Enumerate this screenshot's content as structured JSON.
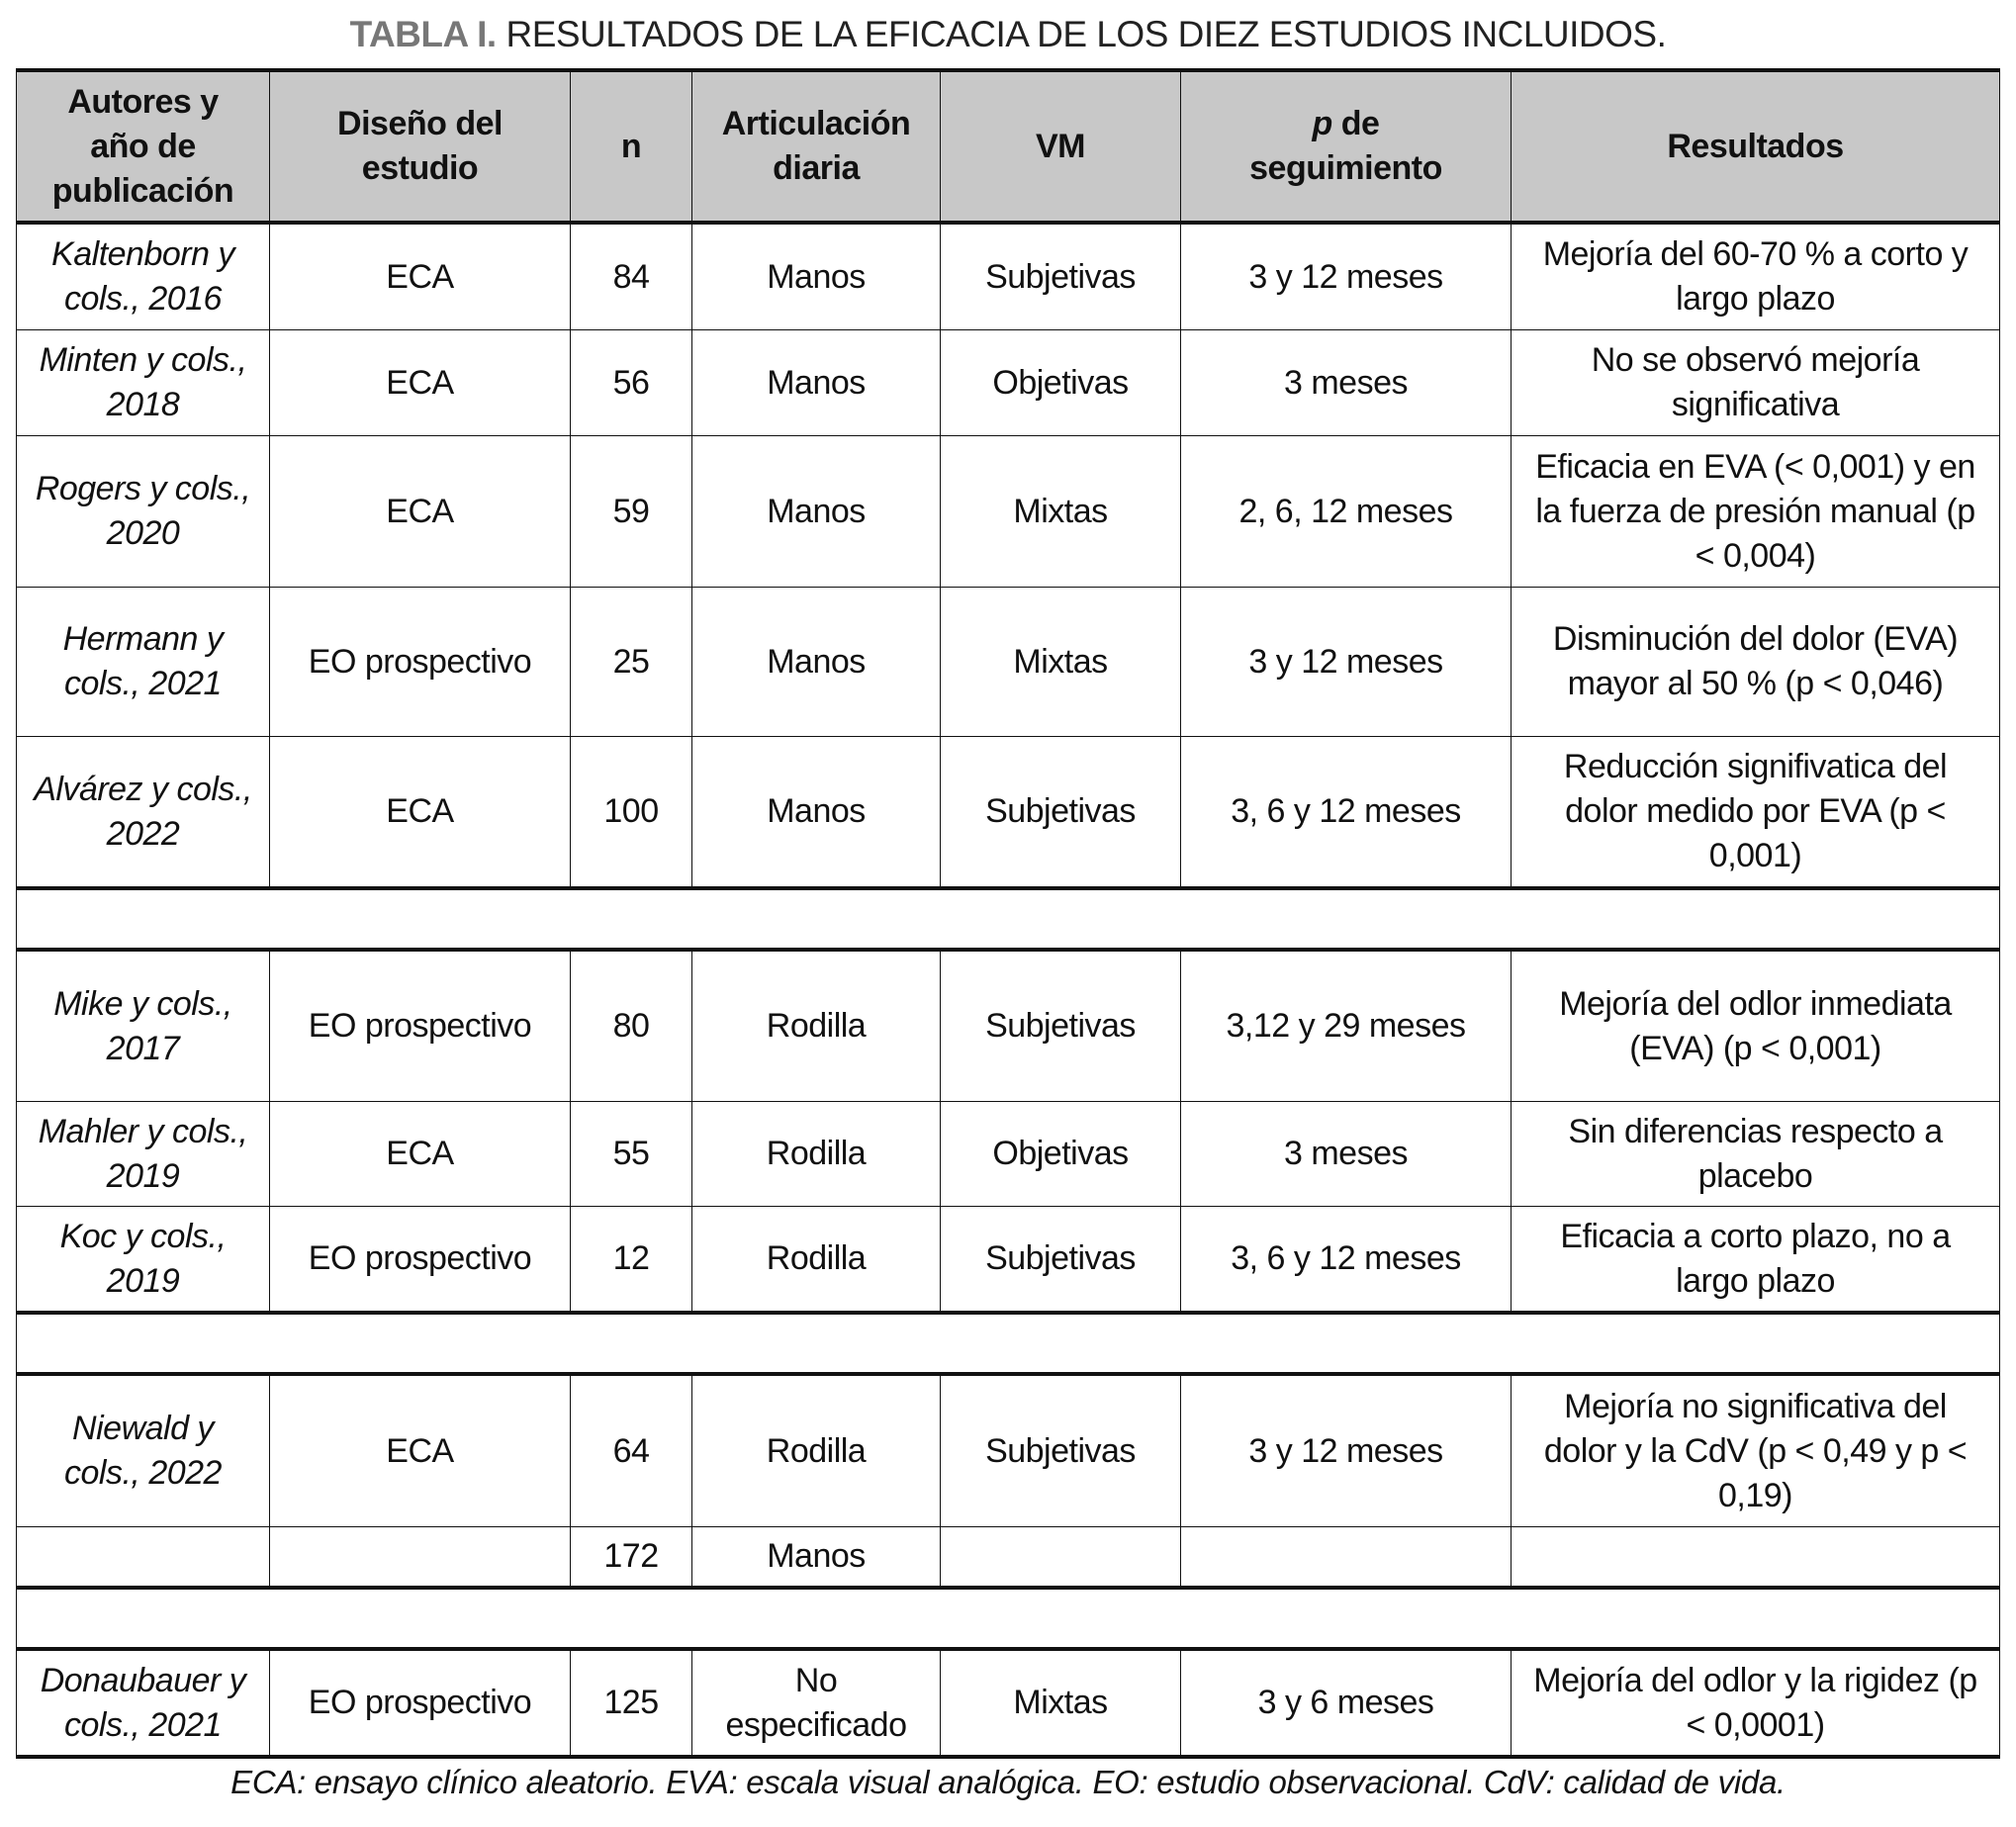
{
  "title": {
    "lead": "TABLA I.",
    "text": "RESULTADOS DE LA EFICACIA DE LOS DIEZ ESTUDIOS INCLUIDOS."
  },
  "headers": {
    "authors": "Autores y año de publicación",
    "design": "Diseño del estudio",
    "n": "n",
    "joint": "Articulación diaria",
    "vm": "VM",
    "followup_p": "p",
    "followup_rest": " de seguimiento",
    "results": "Resultados"
  },
  "rows": [
    {
      "authors": "Kaltenborn y cols., 2016",
      "design": "ECA",
      "n": "84",
      "joint": "Manos",
      "vm": "Subjetivas",
      "followup": "3 y 12 meses",
      "results": "Mejoría del 60-70 % a corto y largo plazo"
    },
    {
      "authors": "Minten y cols., 2018",
      "design": "ECA",
      "n": "56",
      "joint": "Manos",
      "vm": "Objetivas",
      "followup": "3 meses",
      "results": "No se observó mejoría significativa"
    },
    {
      "authors": "Rogers y cols., 2020",
      "design": "ECA",
      "n": "59",
      "joint": "Manos",
      "vm": "Mixtas",
      "followup": "2, 6, 12 meses",
      "results": "Eficacia en EVA (< 0,001) y en la fuerza de presión manual (p < 0,004)"
    },
    {
      "authors": "Hermann y cols., 2021",
      "design": "EO prospectivo",
      "n": "25",
      "joint": "Manos",
      "vm": "Mixtas",
      "followup": "3 y 12 meses",
      "results": "Disminución del dolor (EVA) mayor al 50 % (p < 0,046)"
    },
    {
      "authors": "Alvárez y cols., 2022",
      "design": "ECA",
      "n": "100",
      "joint": "Manos",
      "vm": "Subjetivas",
      "followup": "3, 6 y 12 meses",
      "results": "Reducción signifivatica del dolor medido por EVA (p < 0,001)"
    },
    {
      "authors": "Mike y cols., 2017",
      "design": "EO prospectivo",
      "n": "80",
      "joint": "Rodilla",
      "vm": "Subjetivas",
      "followup": "3,12 y 29 meses",
      "results": "Mejoría del odlor inmediata (EVA) (p < 0,001)"
    },
    {
      "authors": "Mahler y cols., 2019",
      "design": "ECA",
      "n": "55",
      "joint": "Rodilla",
      "vm": "Objetivas",
      "followup": "3 meses",
      "results": "Sin diferencias respecto a placebo"
    },
    {
      "authors": "Koc y cols., 2019",
      "design": "EO prospectivo",
      "n": "12",
      "joint": "Rodilla",
      "vm": "Subjetivas",
      "followup": "3, 6 y 12 meses",
      "results": "Eficacia a corto plazo, no a largo plazo"
    },
    {
      "authors": "Niewald y cols., 2022",
      "design": "ECA",
      "n": "64",
      "joint": "Rodilla",
      "vm": "Subjetivas",
      "followup": "3 y 12 meses",
      "results": "Mejoría no significativa del dolor y la CdV (p < 0,49 y p < 0,19)"
    },
    {
      "authors": "",
      "design": "",
      "n": "172",
      "joint": "Manos",
      "vm": "",
      "followup": "",
      "results": ""
    },
    {
      "authors": "Donaubauer y cols., 2021",
      "design": "EO prospectivo",
      "n": "125",
      "joint": "No especificado",
      "vm": "Mixtas",
      "followup": "3 y 6 meses",
      "results": "Mejoría del odlor y la rigidez (p < 0,0001)"
    }
  ],
  "footnote": "ECA: ensayo clínico aleatorio. EVA: escala visual analógica. EO: estudio observacional. CdV: calidad de vida."
}
